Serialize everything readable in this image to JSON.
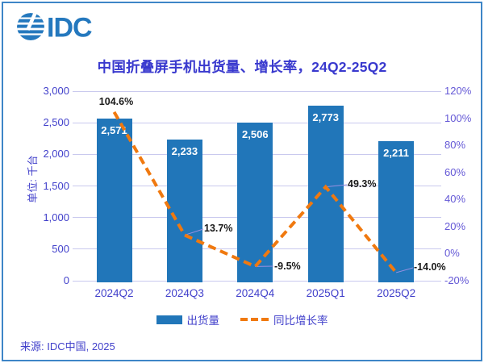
{
  "window": {
    "border_color": "#3E86C7",
    "background_color": "#FFFFFF"
  },
  "logo": {
    "text": "IDC",
    "color": "#2478BE"
  },
  "title": {
    "text": "中国折叠屏手机出货量、增长率，24Q2-25Q2",
    "color": "#3939CE"
  },
  "legend": {
    "bar_label": "出货量",
    "line_label": "同比增长率"
  },
  "footer": {
    "source": "来源: IDC中国, 2025"
  },
  "colors": {
    "bar": "#2176B9",
    "line": "#F0790F",
    "grid": "#C9C9EE",
    "leader_line": "#9A90E2",
    "axis_text_left": "#4241CB",
    "axis_text_right": "#6458D6",
    "data_label": "#1A1A1A",
    "bar_label": "#FFFFFF"
  },
  "chart_data": {
    "type": "bar",
    "subtype": "bar-line-combo",
    "title": "中国折叠屏手机出货量、增长率，24Q2-25Q2",
    "categories": [
      "2024Q2",
      "2024Q3",
      "2024Q4",
      "2025Q1",
      "2025Q2"
    ],
    "series": [
      {
        "name": "出货量",
        "type": "bar",
        "axis": "left",
        "color": "#2176B9",
        "values": [
          2571,
          2233,
          2506,
          2773,
          2211
        ],
        "labels": [
          "2,571",
          "2,233",
          "2,506",
          "2,773",
          "2,211"
        ]
      },
      {
        "name": "同比增长率",
        "type": "line",
        "style": "dashed",
        "axis": "right",
        "color": "#F0790F",
        "values": [
          104.6,
          13.7,
          -9.5,
          49.3,
          -14.0
        ],
        "labels": [
          "104.6%",
          "13.7%",
          "-9.5%",
          "49.3%",
          "-14.0%"
        ]
      }
    ],
    "left_axis": {
      "title": "单位: 千台",
      "min": 0,
      "max": 3000,
      "tick_step": 500,
      "tick_labels": [
        "0",
        "500",
        "1,000",
        "1,500",
        "2,000",
        "2,500",
        "3,000"
      ]
    },
    "right_axis": {
      "min": -20,
      "max": 120,
      "tick_step": 20,
      "tick_labels": [
        "-20%",
        "0%",
        "20%",
        "40%",
        "60%",
        "80%",
        "100%",
        "120%"
      ]
    },
    "grid": true,
    "legend_position": "bottom"
  }
}
